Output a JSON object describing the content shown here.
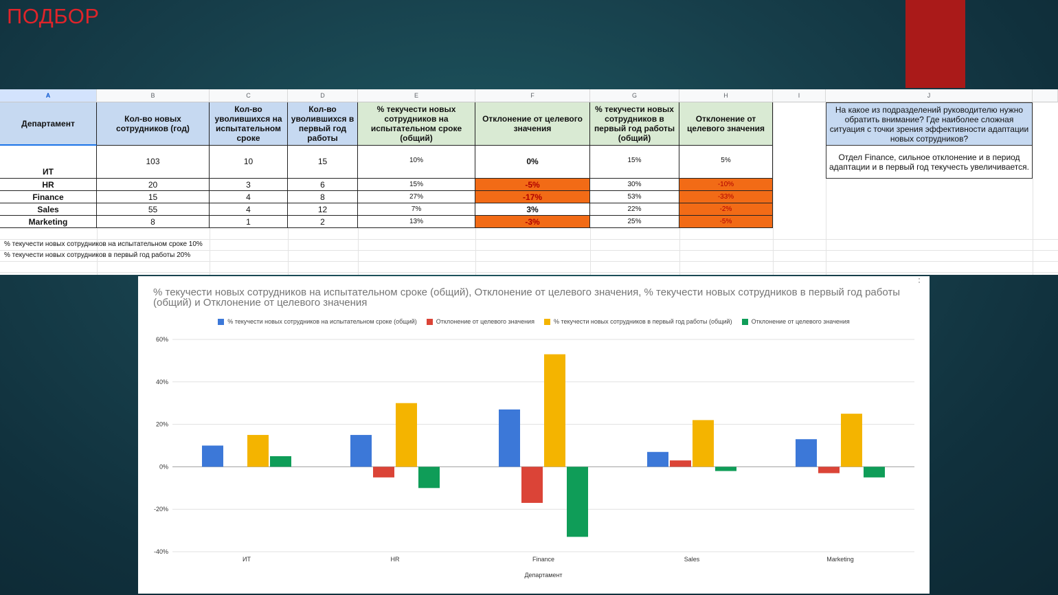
{
  "slide": {
    "title": "ПОДБОР",
    "accent_color": "#aa1a19"
  },
  "spreadsheet": {
    "column_letters": [
      "A",
      "B",
      "C",
      "D",
      "E",
      "F",
      "G",
      "H",
      "I",
      "J"
    ],
    "selected_column": "A",
    "headers": [
      "Департамент",
      "Кол-во новых сотрудников (год)",
      "Кол-во уволившихся на испытательном сроке",
      "Кол-во уволившихся в первый год работы",
      "% текучести новых сотрудников на испытательном сроке (общий)",
      "Отклонение от целевого значения",
      "% текучести новых сотрудников в первый год работы (общий)",
      "Отклонение от целевого значения"
    ],
    "rows": [
      {
        "dept": "ИТ",
        "new": "103",
        "left_trial": "10",
        "left_year": "15",
        "trial_pct": "10%",
        "trial_dev": "0%",
        "year_pct": "15%",
        "year_dev": "5%",
        "trial_dev_highlight": false,
        "year_dev_highlight": false
      },
      {
        "dept": "HR",
        "new": "20",
        "left_trial": "3",
        "left_year": "6",
        "trial_pct": "15%",
        "trial_dev": "-5%",
        "year_pct": "30%",
        "year_dev": "-10%",
        "trial_dev_highlight": true,
        "year_dev_highlight": true
      },
      {
        "dept": "Finance",
        "new": "15",
        "left_trial": "4",
        "left_year": "8",
        "trial_pct": "27%",
        "trial_dev": "-17%",
        "year_pct": "53%",
        "year_dev": "-33%",
        "trial_dev_highlight": true,
        "year_dev_highlight": true
      },
      {
        "dept": "Sales",
        "new": "55",
        "left_trial": "4",
        "left_year": "12",
        "trial_pct": "7%",
        "trial_dev": "3%",
        "year_pct": "22%",
        "year_dev": "-2%",
        "trial_dev_highlight": false,
        "year_dev_highlight": true
      },
      {
        "dept": "Marketing",
        "new": "8",
        "left_trial": "1",
        "left_year": "2",
        "trial_pct": "13%",
        "trial_dev": "-3%",
        "year_pct": "25%",
        "year_dev": "-5%",
        "trial_dev_highlight": true,
        "year_dev_highlight": true
      }
    ],
    "highlight_color": "#f26b16",
    "notes": [
      "% текучести новых сотрудников на испытательном сроке 10%",
      "% текучести новых сотрудников в первый год работы 20%"
    ],
    "question": "На какое из подразделений руководителю нужно обратить внимание? Где наиболее сложная ситуация с точки зрения эффективности адаптации новых сотрудников?",
    "answer": "Отдел Finance, сильное отклонение и в период адаптации и в первый год текучесть увеличивается."
  },
  "chart_data": {
    "type": "bar",
    "title": "% текучести новых сотрудников на испытательном сроке (общий), Отклонение от целевого значения, % текучести новых сотрудников в первый год работы (общий) и Отклонение от целевого значения",
    "xlabel": "Департамент",
    "ylabel": "",
    "categories": [
      "ИТ",
      "HR",
      "Finance",
      "Sales",
      "Marketing"
    ],
    "ylim": [
      -40,
      60
    ],
    "yticks": [
      60,
      40,
      20,
      0,
      -20,
      -40
    ],
    "ytick_suffix": "%",
    "grid": true,
    "legend_position": "top",
    "series": [
      {
        "name": "% текучести новых сотрудников на испытательном сроке (общий)",
        "color": "#3c78d8",
        "values": [
          10,
          15,
          27,
          7,
          13
        ]
      },
      {
        "name": "Отклонение от целевого значения",
        "color": "#db4437",
        "values": [
          0,
          -5,
          -17,
          3,
          -3
        ]
      },
      {
        "name": "% текучести новых сотрудников в первый год работы (общий)",
        "color": "#f4b400",
        "values": [
          15,
          30,
          53,
          22,
          25
        ]
      },
      {
        "name": "Отклонение от целевого значения",
        "color": "#0f9d58",
        "values": [
          5,
          -10,
          -33,
          -2,
          -5
        ]
      }
    ]
  }
}
